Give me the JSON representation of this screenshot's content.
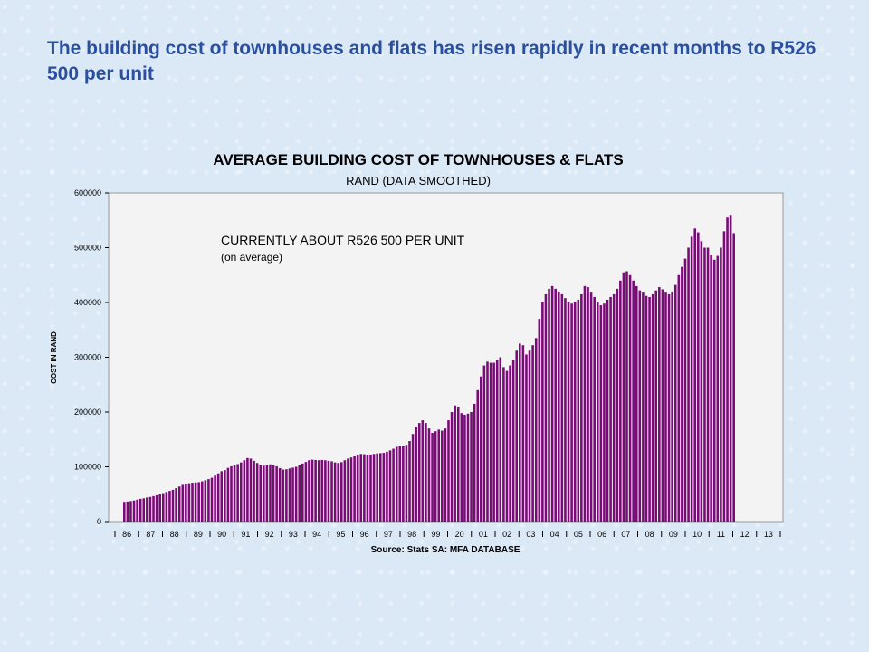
{
  "slide": {
    "title": "The building cost of townhouses and flats has risen rapidly in recent months to R526 500 per unit"
  },
  "colors": {
    "bar": "#7a0a78",
    "plot_bg": "#f3f3f3",
    "title": "#2a4f9e"
  },
  "chart_data": {
    "type": "bar",
    "title": "AVERAGE BUILDING COST OF TOWNHOUSES & FLATS",
    "subtitle": "RAND (DATA SMOOTHED)",
    "xlabel": "Source: Stats SA: MFA DATABASE",
    "ylabel": "COST IN RAND",
    "ylim": [
      0,
      600000
    ],
    "yticks": [
      "0",
      "100000",
      "200000",
      "300000",
      "400000",
      "500000",
      "600000"
    ],
    "x_tick_labels": [
      "86",
      "87",
      "88",
      "89",
      "90",
      "91",
      "92",
      "93",
      "94",
      "95",
      "96",
      "97",
      "98",
      "99",
      "20",
      "01",
      "02",
      "03",
      "04",
      "05",
      "06",
      "07",
      "08",
      "09",
      "10",
      "11",
      "12",
      "13"
    ],
    "annotation": [
      "CURRENTLY ABOUT R526 500 PER UNIT",
      "(on average)"
    ],
    "grid": false,
    "legend": "none",
    "series": [
      {
        "values": [
          36000,
          36500,
          37500,
          38500,
          40000,
          41500,
          42500,
          44000,
          45000,
          46500,
          48000,
          50000,
          52000,
          54000,
          56000,
          58000,
          61000,
          64000,
          67000,
          69000,
          70000,
          71000,
          71500,
          72000,
          73500,
          75500,
          77500,
          80000,
          84000,
          88000,
          92000,
          94000,
          98000,
          101000,
          103000,
          105000,
          108000,
          112000,
          116000,
          115000,
          111000,
          107000,
          104000,
          102000,
          103000,
          104500,
          104000,
          101000,
          97500,
          95000,
          95500,
          97000,
          98500,
          100000,
          103000,
          106000,
          109000,
          112000,
          113000,
          112500,
          112000,
          112500,
          112000,
          111000,
          110000,
          108000,
          107000,
          108500,
          112000,
          115000,
          117000,
          119000,
          121000,
          123500,
          123000,
          122000,
          122500,
          123500,
          124500,
          125000,
          125500,
          127500,
          130000,
          133000,
          136500,
          138000,
          137500,
          140000,
          147000,
          160000,
          173000,
          180000,
          185000,
          180000,
          170000,
          162000,
          165000,
          168000,
          166000,
          170000,
          185000,
          200000,
          212000,
          210000,
          198000,
          195000,
          197000,
          200000,
          215000,
          240000,
          265000,
          285000,
          292000,
          290000,
          290000,
          295000,
          300000,
          282000,
          275000,
          285000,
          295000,
          312000,
          325000,
          322000,
          305000,
          312000,
          322000,
          335000,
          370000,
          400000,
          415000,
          425000,
          430000,
          425000,
          420000,
          415000,
          408000,
          400000,
          398000,
          400000,
          405000,
          415000,
          430000,
          428000,
          418000,
          410000,
          400000,
          395000,
          398000,
          405000,
          410000,
          415000,
          425000,
          440000,
          455000,
          457000,
          450000,
          440000,
          430000,
          422000,
          418000,
          412000,
          410000,
          415000,
          422000,
          428000,
          424000,
          418000,
          415000,
          420000,
          432000,
          450000,
          465000,
          480000,
          500000,
          520000,
          535000,
          528000,
          512000,
          500000,
          500000,
          486000,
          478000,
          485000,
          500000,
          530000,
          555000,
          560000,
          526500
        ]
      }
    ]
  }
}
